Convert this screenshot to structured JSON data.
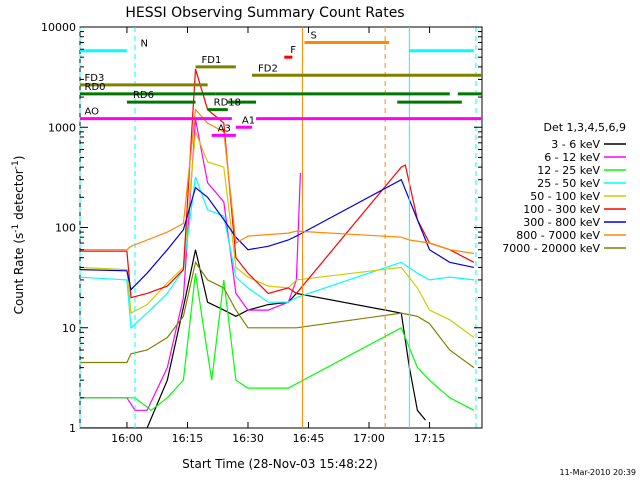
{
  "chart_data": {
    "type": "line",
    "title": "HESSI Observing Summary Count Rates",
    "xlabel": "Start Time (28-Nov-03 15:48:22)",
    "ylabel_main": "Count Rate (s",
    "ylabel_sup1": "-1",
    "ylabel_mid": " detector",
    "ylabel_sup2": "-1",
    "ylabel_end": ")",
    "yscale": "log",
    "xlim": [
      "15:48:22",
      "17:28:00"
    ],
    "ylim": [
      1,
      10000
    ],
    "x_ticks": [
      "16:00",
      "16:15",
      "16:30",
      "16:45",
      "17:00",
      "17:15"
    ],
    "y_ticks": [
      "1",
      "10",
      "100",
      "1000",
      "10000"
    ],
    "timestamp": "11-Mar-2010 20:39",
    "legend_title": "Det 1,3,4,5,6,9",
    "series": [
      {
        "name": "3 - 6 keV",
        "color": "#000000",
        "x": [
          "15:48",
          "16:00",
          "16:05",
          "16:10",
          "16:14",
          "16:17",
          "16:20",
          "16:24",
          "16:27",
          "16:30",
          "16:35",
          "16:40",
          "16:42",
          "17:08",
          "17:10",
          "17:12",
          "17:14"
        ],
        "y": [
          1,
          1,
          1,
          3,
          16,
          60,
          18,
          15,
          13,
          15,
          17,
          18,
          22,
          14,
          4,
          1.5,
          1.2
        ]
      },
      {
        "name": "6 - 12 keV",
        "color": "#ff00ff",
        "x": [
          "15:48",
          "16:00",
          "16:02",
          "16:05",
          "16:10",
          "16:14",
          "16:17",
          "16:20",
          "16:24",
          "16:27",
          "16:30",
          "16:35",
          "16:40",
          "16:42",
          "16:43"
        ],
        "y": [
          2,
          2,
          1.5,
          1.5,
          4,
          20,
          1200,
          280,
          180,
          22,
          15,
          15,
          18,
          30,
          350
        ]
      },
      {
        "name": "12 - 25 keV",
        "color": "#00ff00",
        "x": [
          "15:48",
          "16:00",
          "16:02",
          "16:06",
          "16:10",
          "16:14",
          "16:17",
          "16:19",
          "16:21",
          "16:24",
          "16:27",
          "16:30",
          "16:40",
          "17:08",
          "17:12",
          "17:15",
          "17:20",
          "17:26"
        ],
        "y": [
          2,
          2,
          2,
          1.5,
          2,
          3,
          35,
          10,
          3,
          30,
          3,
          2.5,
          2.5,
          10,
          4,
          3,
          2,
          1.5
        ]
      },
      {
        "name": "25 - 50 keV",
        "color": "#00ffff",
        "x": [
          "15:48",
          "16:00",
          "16:01",
          "16:05",
          "16:10",
          "16:14",
          "16:17",
          "16:20",
          "16:24",
          "16:27",
          "16:30",
          "16:35",
          "16:40",
          "16:42",
          "17:08",
          "17:12",
          "17:15",
          "17:20",
          "17:26"
        ],
        "y": [
          32,
          30,
          10,
          14,
          22,
          38,
          320,
          150,
          130,
          32,
          25,
          18,
          18,
          20,
          45,
          35,
          30,
          32,
          30
        ]
      },
      {
        "name": "50 - 100 keV",
        "color": "#cccc00",
        "x": [
          "15:48",
          "16:00",
          "16:01",
          "16:05",
          "16:10",
          "16:14",
          "16:17",
          "16:20",
          "16:24",
          "16:27",
          "16:30",
          "16:35",
          "16:40",
          "16:42",
          "17:08",
          "17:12",
          "17:15",
          "17:20",
          "17:26"
        ],
        "y": [
          40,
          38,
          14,
          17,
          28,
          40,
          900,
          450,
          400,
          40,
          32,
          26,
          25,
          30,
          40,
          25,
          15,
          12,
          8
        ]
      },
      {
        "name": "100 - 300 keV",
        "color": "#ff0000",
        "x": [
          "15:48",
          "16:00",
          "16:01",
          "16:05",
          "16:10",
          "16:14",
          "16:17",
          "16:20",
          "16:24",
          "16:27",
          "16:30",
          "16:35",
          "16:40",
          "16:42",
          "17:08",
          "17:09",
          "17:12",
          "17:15",
          "17:20",
          "17:26"
        ],
        "y": [
          58,
          58,
          20,
          22,
          26,
          38,
          3800,
          1500,
          1100,
          50,
          35,
          22,
          25,
          22,
          400,
          420,
          120,
          70,
          60,
          45
        ]
      },
      {
        "name": "300 - 800 keV",
        "color": "#0000dd",
        "x": [
          "15:48",
          "16:00",
          "16:01",
          "16:05",
          "16:10",
          "16:14",
          "16:17",
          "16:20",
          "16:24",
          "16:27",
          "16:30",
          "16:35",
          "16:40",
          "16:42",
          "17:08",
          "17:12",
          "17:15",
          "17:20",
          "17:26"
        ],
        "y": [
          38,
          37,
          24,
          35,
          60,
          95,
          250,
          200,
          120,
          80,
          60,
          65,
          75,
          82,
          300,
          120,
          60,
          45,
          40
        ]
      },
      {
        "name": "800 - 7000 keV",
        "color": "#ff8800",
        "x": [
          "15:48",
          "16:00",
          "16:01",
          "16:05",
          "16:10",
          "16:14",
          "16:17",
          "16:20",
          "16:24",
          "16:27",
          "16:30",
          "16:35",
          "16:40",
          "16:42",
          "17:08",
          "17:10",
          "17:15",
          "17:20",
          "17:26"
        ],
        "y": [
          60,
          60,
          65,
          75,
          90,
          110,
          1500,
          1100,
          900,
          70,
          82,
          85,
          88,
          92,
          80,
          75,
          70,
          60,
          55
        ]
      },
      {
        "name": "7000 - 20000 keV",
        "color": "#808000",
        "x": [
          "15:48",
          "16:00",
          "16:01",
          "16:05",
          "16:10",
          "16:14",
          "16:17",
          "16:20",
          "16:24",
          "16:27",
          "16:30",
          "16:35",
          "16:40",
          "16:42",
          "17:08",
          "17:12",
          "17:15",
          "17:20",
          "17:26"
        ],
        "y": [
          4.5,
          4.5,
          5.5,
          6,
          8,
          13,
          45,
          30,
          25,
          15,
          10,
          10,
          10,
          10,
          14,
          13,
          11,
          6,
          4
        ]
      }
    ],
    "gap_lines": [
      {
        "time": "15:48:22",
        "color": "#00ffff",
        "style": "dashed"
      },
      {
        "time": "16:02:00",
        "color": "#00ffff",
        "style": "dashed"
      },
      {
        "time": "16:43:30",
        "color": "#ff8800",
        "style": "solid"
      },
      {
        "time": "17:04:00",
        "color": "#ff8800",
        "style": "dashed"
      },
      {
        "time": "17:10:00",
        "color": "#00ffff",
        "style": "solid"
      },
      {
        "time": "17:26:30",
        "color": "#00ffff",
        "style": "dashed"
      }
    ],
    "flags": [
      {
        "label": "N",
        "color": "#00ffff",
        "segments": [
          [
            "15:48",
            "16:00"
          ],
          [
            "17:10",
            "17:26"
          ]
        ],
        "y": 5800
      },
      {
        "label": "S",
        "color": "#ff8800",
        "segments": [
          [
            "16:44",
            "17:05"
          ]
        ],
        "y": 7000
      },
      {
        "label": "F",
        "color": "#ff0000",
        "segments": [
          [
            "16:39",
            "16:41"
          ]
        ],
        "y": 5000
      },
      {
        "label": "FD1",
        "color": "#808000",
        "segments": [
          [
            "16:17",
            "16:27"
          ]
        ],
        "y": 4000
      },
      {
        "label": "FD2",
        "color": "#808000",
        "segments": [
          [
            "16:31",
            "17:28"
          ]
        ],
        "y": 3300
      },
      {
        "label": "FD3",
        "color": "#808000",
        "segments": [
          [
            "15:48",
            "16:20"
          ]
        ],
        "y": 2650
      },
      {
        "label": "RD0",
        "color": "#007700",
        "segments": [
          [
            "15:48",
            "16:22"
          ],
          [
            "16:22",
            "17:04"
          ],
          [
            "17:04",
            "17:20"
          ],
          [
            "17:22",
            "17:28"
          ]
        ],
        "y": 2150
      },
      {
        "label": "RD6",
        "color": "#007700",
        "segments": [
          [
            "16:00",
            "16:17"
          ],
          [
            "16:25",
            "16:32"
          ],
          [
            "17:07",
            "17:23"
          ]
        ],
        "y": 1780
      },
      {
        "label": "RD18",
        "color": "#007700",
        "segments": [
          [
            "16:20",
            "16:25"
          ]
        ],
        "y": 1500
      },
      {
        "label": "AO",
        "color": "#ff00ff",
        "segments": [
          [
            "15:48",
            "16:26"
          ],
          [
            "16:32",
            "17:28"
          ]
        ],
        "y": 1220
      },
      {
        "label": "A1",
        "color": "#ff00ff",
        "segments": [
          [
            "16:27",
            "16:31"
          ]
        ],
        "y": 1000
      },
      {
        "label": "A3",
        "color": "#ff00ff",
        "segments": [
          [
            "16:21",
            "16:27"
          ]
        ],
        "y": 830
      }
    ]
  }
}
